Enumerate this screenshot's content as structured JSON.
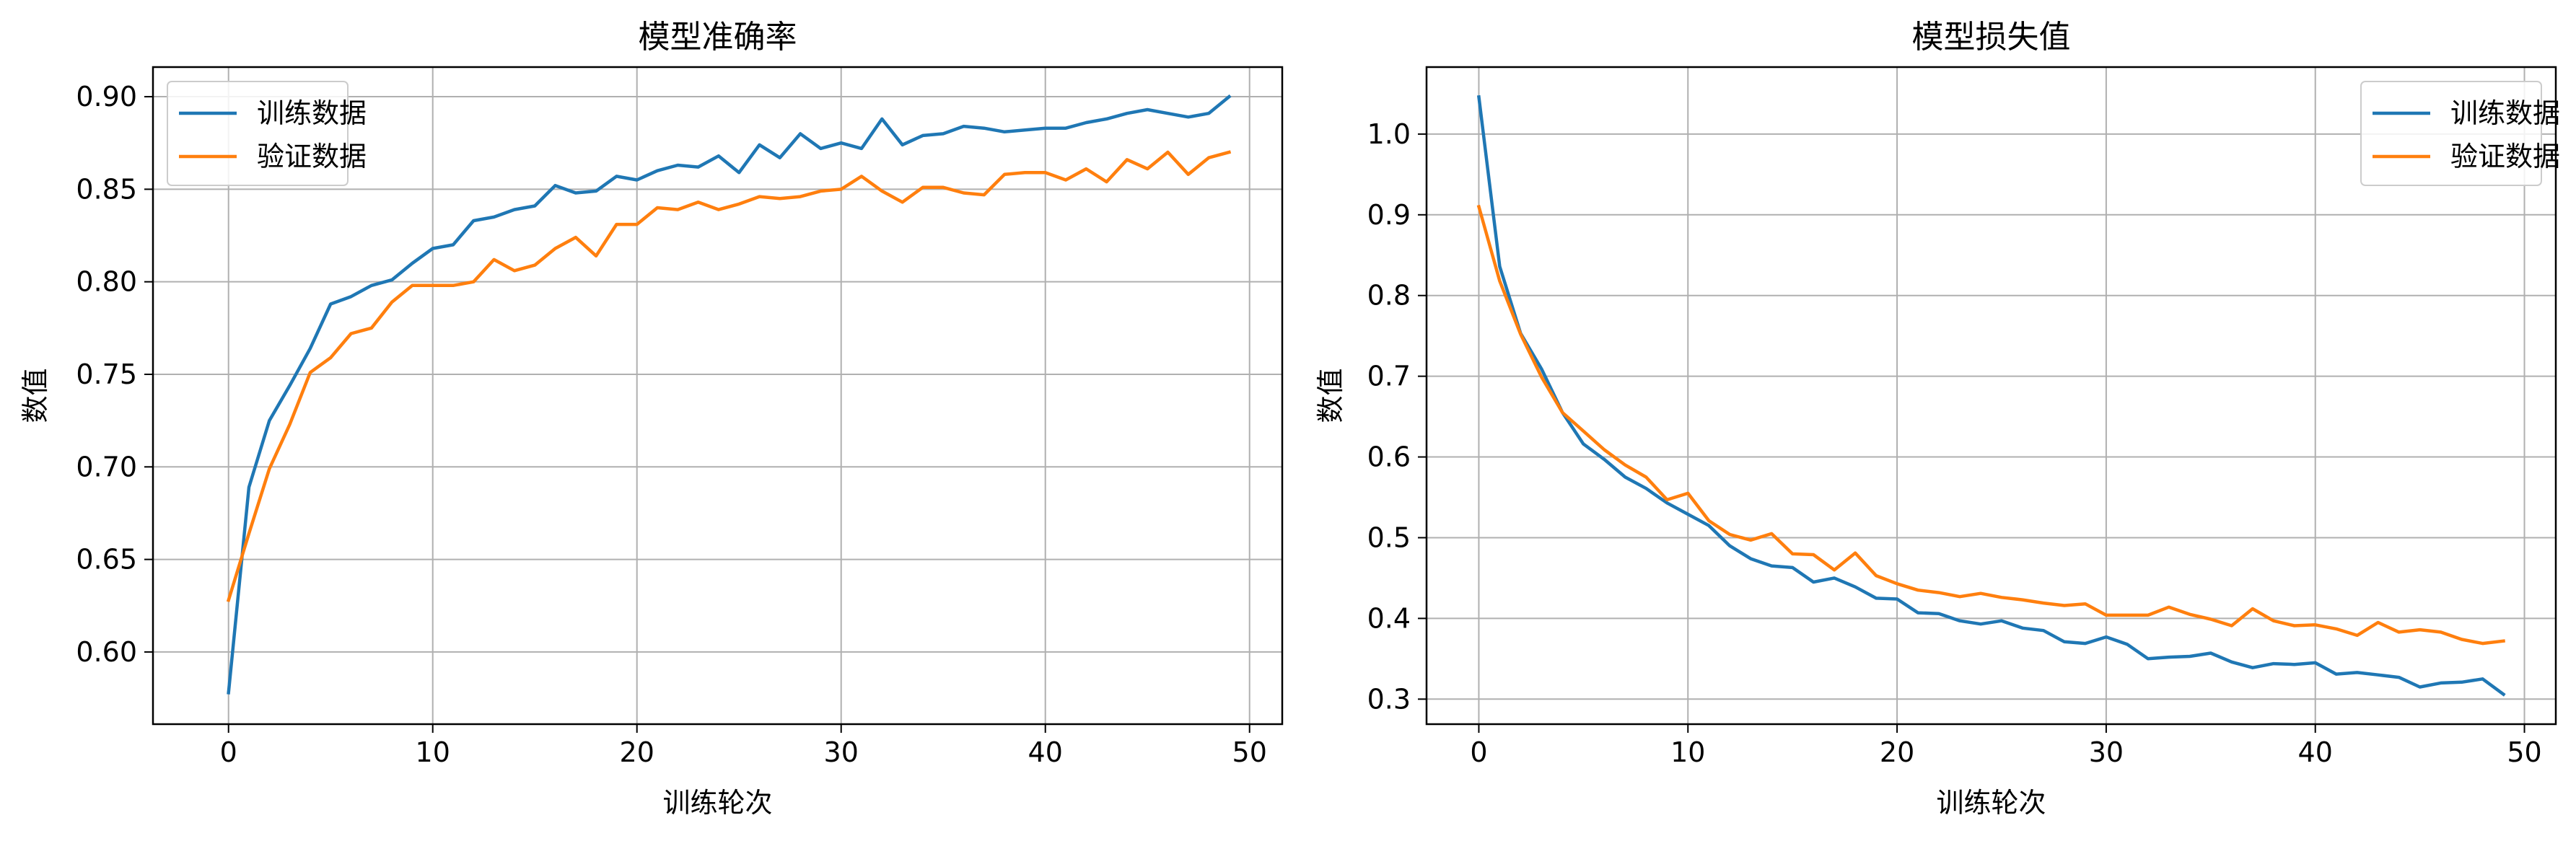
{
  "chart_data": [
    {
      "type": "line",
      "title": "模型准确率",
      "xlabel": "训练轮次",
      "ylabel": "数值",
      "xlim": [
        -3.7,
        51.6
      ],
      "ylim": [
        0.561,
        0.916
      ],
      "xticks": [
        0,
        10,
        20,
        30,
        40,
        50
      ],
      "yticks": [
        0.6,
        0.65,
        0.7,
        0.75,
        0.8,
        0.85,
        0.9
      ],
      "grid": true,
      "legend": "upper left",
      "x": [
        0,
        1,
        2,
        3,
        4,
        5,
        6,
        7,
        8,
        9,
        10,
        11,
        12,
        13,
        14,
        15,
        16,
        17,
        18,
        19,
        20,
        21,
        22,
        23,
        24,
        25,
        26,
        27,
        28,
        29,
        30,
        31,
        32,
        33,
        34,
        35,
        36,
        37,
        38,
        39,
        40,
        41,
        42,
        43,
        44,
        45,
        46,
        47,
        48,
        49
      ],
      "series": [
        {
          "name": "训练数据",
          "color": "#1f77b4",
          "values": [
            0.578,
            0.689,
            0.725,
            0.744,
            0.764,
            0.788,
            0.792,
            0.798,
            0.801,
            0.81,
            0.818,
            0.82,
            0.833,
            0.835,
            0.839,
            0.841,
            0.852,
            0.848,
            0.849,
            0.857,
            0.855,
            0.86,
            0.863,
            0.862,
            0.868,
            0.859,
            0.874,
            0.867,
            0.88,
            0.872,
            0.875,
            0.872,
            0.888,
            0.874,
            0.879,
            0.88,
            0.884,
            0.883,
            0.881,
            0.882,
            0.883,
            0.883,
            0.886,
            0.888,
            0.891,
            0.893,
            0.891,
            0.889,
            0.891,
            0.9
          ]
        },
        {
          "name": "验证数据",
          "color": "#ff7f0e",
          "values": [
            0.628,
            0.664,
            0.699,
            0.723,
            0.751,
            0.759,
            0.772,
            0.775,
            0.789,
            0.798,
            0.798,
            0.798,
            0.8,
            0.812,
            0.806,
            0.809,
            0.818,
            0.824,
            0.814,
            0.831,
            0.831,
            0.84,
            0.839,
            0.843,
            0.839,
            0.842,
            0.846,
            0.845,
            0.846,
            0.849,
            0.85,
            0.857,
            0.849,
            0.843,
            0.851,
            0.851,
            0.848,
            0.847,
            0.858,
            0.859,
            0.859,
            0.855,
            0.861,
            0.854,
            0.866,
            0.861,
            0.87,
            0.858,
            0.867,
            0.87
          ]
        }
      ]
    },
    {
      "type": "line",
      "title": "模型损失值",
      "xlabel": "训练轮次",
      "ylabel": "数值",
      "xlim": [
        -2.5,
        51.5
      ],
      "ylim": [
        0.269,
        1.083
      ],
      "xticks": [
        0,
        10,
        20,
        30,
        40,
        50
      ],
      "yticks": [
        0.3,
        0.4,
        0.5,
        0.6,
        0.7,
        0.8,
        0.9,
        1.0
      ],
      "grid": true,
      "legend": "upper right",
      "x": [
        0,
        1,
        2,
        3,
        4,
        5,
        6,
        7,
        8,
        9,
        10,
        11,
        12,
        13,
        14,
        15,
        16,
        17,
        18,
        19,
        20,
        21,
        22,
        23,
        24,
        25,
        26,
        27,
        28,
        29,
        30,
        31,
        32,
        33,
        34,
        35,
        36,
        37,
        38,
        39,
        40,
        41,
        42,
        43,
        44,
        45,
        46,
        47,
        48,
        49
      ],
      "series": [
        {
          "name": "训练数据",
          "color": "#1f77b4",
          "values": [
            1.046,
            0.836,
            0.753,
            0.709,
            0.655,
            0.616,
            0.597,
            0.575,
            0.561,
            0.543,
            0.529,
            0.515,
            0.49,
            0.474,
            0.465,
            0.463,
            0.445,
            0.45,
            0.439,
            0.425,
            0.424,
            0.407,
            0.406,
            0.397,
            0.393,
            0.397,
            0.388,
            0.385,
            0.371,
            0.369,
            0.377,
            0.368,
            0.35,
            0.352,
            0.353,
            0.357,
            0.346,
            0.339,
            0.344,
            0.343,
            0.345,
            0.331,
            0.333,
            0.33,
            0.327,
            0.315,
            0.32,
            0.321,
            0.325,
            0.306
          ]
        },
        {
          "name": "验证数据",
          "color": "#ff7f0e",
          "values": [
            0.91,
            0.818,
            0.752,
            0.699,
            0.655,
            0.632,
            0.609,
            0.59,
            0.575,
            0.547,
            0.555,
            0.521,
            0.504,
            0.497,
            0.505,
            0.48,
            0.479,
            0.46,
            0.481,
            0.453,
            0.443,
            0.435,
            0.432,
            0.427,
            0.431,
            0.426,
            0.423,
            0.419,
            0.416,
            0.418,
            0.404,
            0.404,
            0.404,
            0.414,
            0.405,
            0.399,
            0.391,
            0.412,
            0.397,
            0.391,
            0.392,
            0.387,
            0.379,
            0.395,
            0.383,
            0.386,
            0.383,
            0.374,
            0.369,
            0.372
          ]
        }
      ]
    }
  ]
}
